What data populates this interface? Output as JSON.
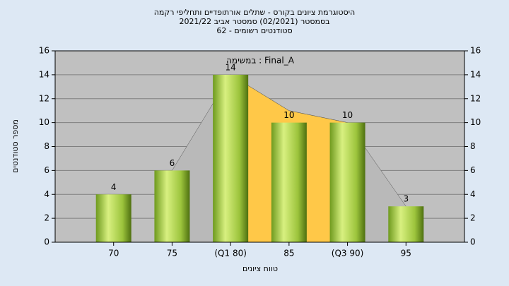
{
  "chart_data": {
    "type": "bar",
    "title": "היסטוגרמת ציונים בקורס - שתלים אורתופדיים ותחליפי רקמה",
    "subtitle": [
      "בסמסטר  (02/2021)  סמסטר אביב 2021/22",
      "סטודנטים רשומים - 62"
    ],
    "annotation": "במשימה : Final_A",
    "x_label": "טווח ציונים",
    "y_label": "מספר סטודנטים",
    "categories": [
      "70",
      "75",
      "(Q1 80)",
      "85",
      "(Q3 90)",
      "95"
    ],
    "values": [
      4,
      6,
      14,
      10,
      10,
      3
    ],
    "color": "#9cc43c",
    "areas": [
      {
        "color": "#b9b9b9",
        "values": [
          null,
          6,
          14,
          11,
          10,
          3
        ]
      },
      {
        "color": "#ffc848",
        "values": [
          null,
          null,
          14,
          11,
          10,
          null
        ]
      }
    ],
    "ylim": [
      0,
      16
    ],
    "yticks": [
      0,
      2,
      4,
      6,
      8,
      10,
      12,
      14,
      16
    ],
    "y2lim": [
      0,
      16
    ],
    "y2ticks": [
      0,
      2,
      4,
      6,
      8,
      10,
      12,
      14,
      16
    ],
    "grid": true
  }
}
